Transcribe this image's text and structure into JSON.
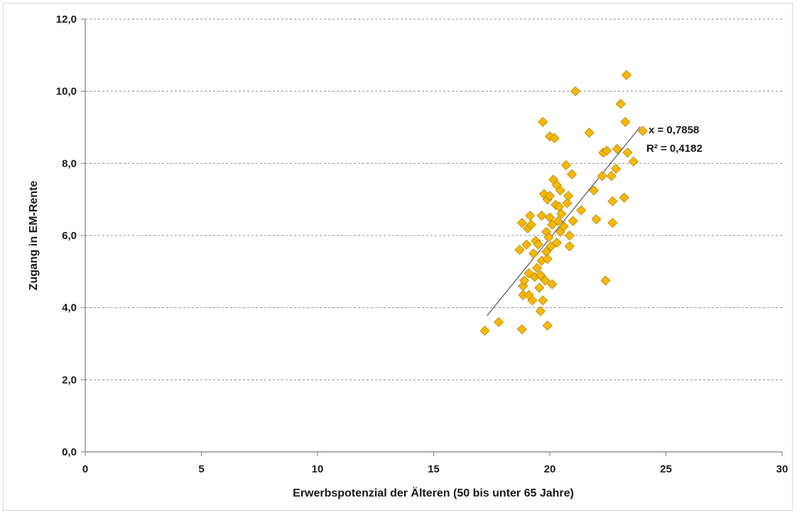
{
  "chart_data": {
    "type": "scatter",
    "xlabel": "Erwerbspotenzial der Älteren (50 bis unter 65 Jahre)",
    "ylabel": "Zugang in EM-Rente",
    "xlim": [
      0,
      30
    ],
    "ylim": [
      0,
      12
    ],
    "x_ticks": [
      "0",
      "5",
      "10",
      "15",
      "20",
      "25",
      "30"
    ],
    "y_ticks": [
      "0,0",
      "2,0",
      "4,0",
      "6,0",
      "8,0",
      "10,0",
      "12,0"
    ],
    "grid": "horizontal dashed",
    "marker": "diamond",
    "marker_color": "#f5b800",
    "marker_edge_color": "#b8860b",
    "trendline": {
      "from": [
        17.3,
        3.78
      ],
      "to": [
        23.9,
        9.02
      ],
      "color": "#555555"
    },
    "annotations": [
      "x = 0,7858",
      "R² = 0,4182"
    ],
    "points": [
      [
        17.2,
        3.36
      ],
      [
        17.8,
        3.6
      ],
      [
        18.8,
        3.4
      ],
      [
        19.9,
        3.5
      ],
      [
        18.7,
        5.6
      ],
      [
        18.8,
        6.35
      ],
      [
        18.85,
        4.6
      ],
      [
        18.9,
        4.75
      ],
      [
        18.85,
        4.35
      ],
      [
        19.0,
        5.75
      ],
      [
        19.05,
        6.2
      ],
      [
        19.1,
        4.95
      ],
      [
        19.1,
        4.35
      ],
      [
        19.15,
        6.55
      ],
      [
        19.2,
        6.3
      ],
      [
        19.25,
        4.2
      ],
      [
        19.3,
        5.5
      ],
      [
        19.35,
        4.85
      ],
      [
        19.4,
        5.85
      ],
      [
        19.45,
        5.1
      ],
      [
        19.5,
        5.75
      ],
      [
        19.55,
        4.55
      ],
      [
        19.6,
        4.9
      ],
      [
        19.6,
        3.9
      ],
      [
        19.65,
        6.55
      ],
      [
        19.65,
        5.3
      ],
      [
        19.7,
        4.2
      ],
      [
        19.7,
        9.15
      ],
      [
        19.75,
        7.15
      ],
      [
        19.8,
        4.75
      ],
      [
        19.85,
        5.55
      ],
      [
        19.85,
        6.1
      ],
      [
        19.9,
        5.35
      ],
      [
        19.9,
        7.0
      ],
      [
        19.95,
        5.95
      ],
      [
        20.0,
        6.5
      ],
      [
        20.0,
        7.1
      ],
      [
        20.0,
        8.75
      ],
      [
        20.05,
        5.7
      ],
      [
        20.1,
        4.65
      ],
      [
        20.1,
        6.3
      ],
      [
        20.15,
        7.55
      ],
      [
        20.2,
        8.7
      ],
      [
        20.25,
        6.85
      ],
      [
        20.3,
        7.4
      ],
      [
        20.3,
        5.8
      ],
      [
        20.35,
        6.4
      ],
      [
        20.4,
        6.8
      ],
      [
        20.45,
        7.25
      ],
      [
        20.45,
        6.1
      ],
      [
        20.5,
        6.6
      ],
      [
        20.6,
        6.25
      ],
      [
        20.7,
        7.95
      ],
      [
        20.75,
        6.9
      ],
      [
        20.8,
        7.1
      ],
      [
        20.85,
        6.0
      ],
      [
        20.85,
        5.7
      ],
      [
        20.95,
        7.7
      ],
      [
        21.0,
        6.4
      ],
      [
        21.1,
        10.0
      ],
      [
        21.35,
        6.7
      ],
      [
        21.7,
        8.85
      ],
      [
        21.9,
        7.25
      ],
      [
        22.0,
        6.45
      ],
      [
        22.25,
        7.65
      ],
      [
        22.3,
        8.3
      ],
      [
        22.4,
        4.75
      ],
      [
        22.45,
        8.35
      ],
      [
        22.65,
        7.65
      ],
      [
        22.7,
        6.95
      ],
      [
        22.7,
        6.35
      ],
      [
        22.85,
        7.85
      ],
      [
        22.9,
        8.4
      ],
      [
        23.05,
        9.65
      ],
      [
        23.2,
        7.05
      ],
      [
        23.25,
        9.15
      ],
      [
        23.3,
        10.45
      ],
      [
        23.35,
        8.3
      ],
      [
        23.6,
        8.05
      ],
      [
        24.0,
        8.9
      ]
    ]
  }
}
